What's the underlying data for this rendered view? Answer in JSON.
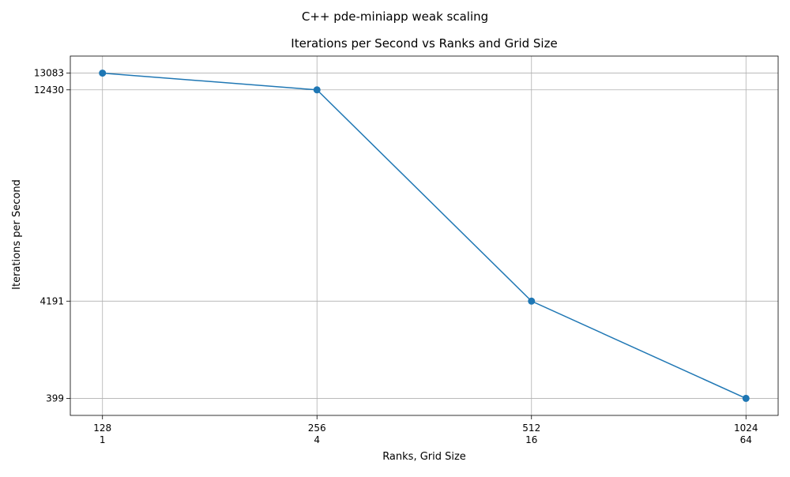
{
  "suptitle": "C++ pde-miniapp weak scaling",
  "chart_data": {
    "type": "line",
    "title": "Iterations per Second vs Ranks and Grid Size",
    "xlabel": "Ranks, Grid Size",
    "ylabel": "Iterations per Second",
    "categories": [
      {
        "top": "128",
        "bottom": "1"
      },
      {
        "top": "256",
        "bottom": "4"
      },
      {
        "top": "512",
        "bottom": "16"
      },
      {
        "top": "1024",
        "bottom": "64"
      }
    ],
    "series": [
      {
        "values": [
          13083,
          12430,
          4191,
          399
        ],
        "color": "#1f77b4",
        "marker": "circle"
      }
    ],
    "yticks": [
      399,
      4191,
      12430,
      13083
    ],
    "ylim": [
      -265.2,
      13747.2
    ],
    "grid": true,
    "legend": "none"
  }
}
